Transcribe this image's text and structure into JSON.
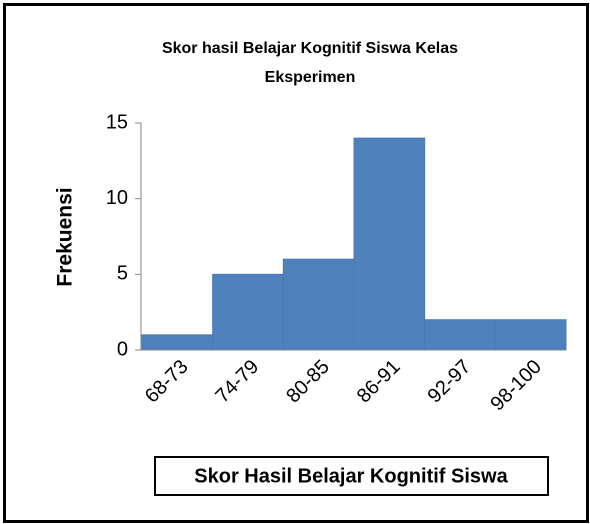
{
  "chart_data": {
    "type": "bar",
    "title": "Skor hasil Belajar Kognitif Siswa Kelas Eksperimen",
    "xlabel": "Skor Hasil Belajar Kognitif Siswa",
    "ylabel": "Frekuensi",
    "categories": [
      "68-73",
      "74-79",
      "80-85",
      "86-91",
      "92-97",
      "98-100"
    ],
    "values": [
      1,
      5,
      6,
      14,
      2,
      2
    ],
    "color": "#4f81bd",
    "ylim": [
      0,
      15
    ],
    "yticks": [
      0,
      5,
      10,
      15
    ],
    "grid": false
  }
}
